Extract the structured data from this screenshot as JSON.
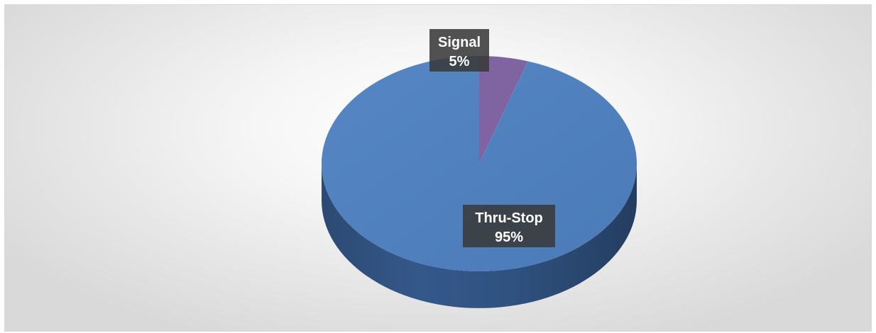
{
  "chart_data": {
    "type": "pie",
    "title": "",
    "slices": [
      {
        "label": "Signal",
        "value": 5,
        "display": "5%",
        "color": "#8064a2"
      },
      {
        "label": "Thru-Stop",
        "value": 95,
        "display": "95%",
        "color": "#4f81bd"
      }
    ]
  }
}
